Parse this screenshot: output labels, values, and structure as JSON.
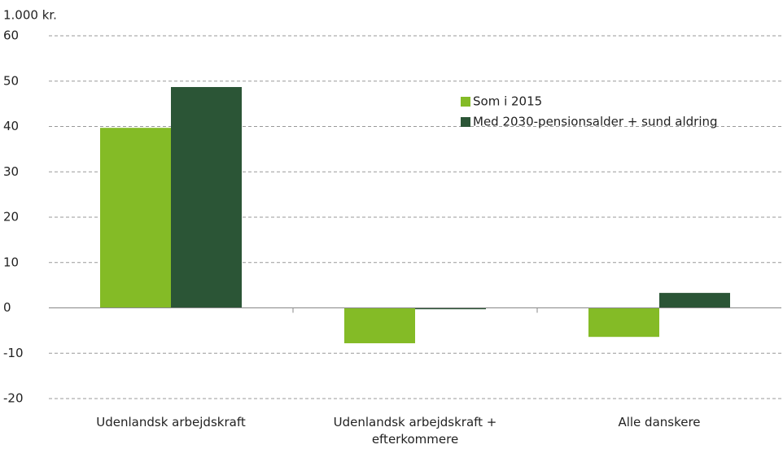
{
  "chart_data": {
    "type": "bar",
    "unit_label": "1.000 kr.",
    "categories": [
      "Udenlandsk arbejdskraft",
      "Udenlandsk arbejdskraft + efterkommere",
      "Alle danskere"
    ],
    "series": [
      {
        "name": "Som i 2015",
        "color": "#84bb26",
        "values": [
          39.7,
          -7.8,
          -6.4
        ]
      },
      {
        "name": "Med 2030-pensionsalder + sund aldring",
        "color": "#2b5536",
        "values": [
          48.7,
          -0.3,
          3.3
        ]
      }
    ],
    "ylim": [
      -20,
      60
    ],
    "yticks": [
      -20,
      -10,
      0,
      10,
      20,
      30,
      40,
      50,
      60
    ],
    "grid": true
  }
}
